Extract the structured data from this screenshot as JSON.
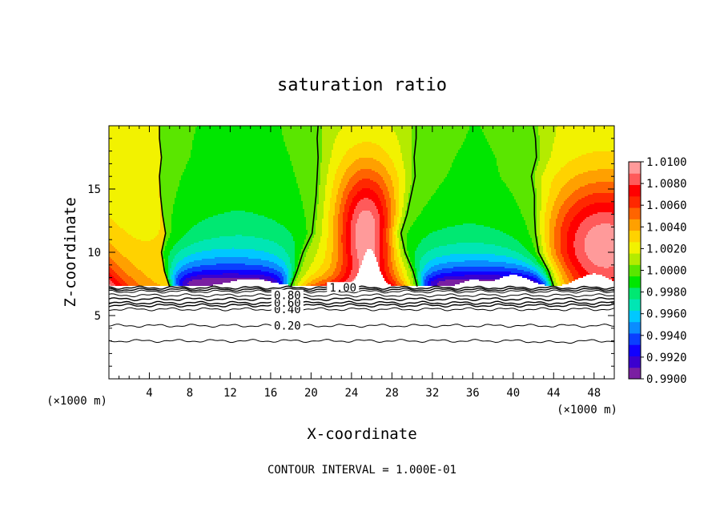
{
  "chart_data": {
    "type": "heatmap",
    "title": "saturation ratio",
    "xlabel": "X-coordinate",
    "ylabel": "Z-coordinate",
    "x_unit_left": "(×1000 m)",
    "x_unit_right": "(×1000 m)",
    "footer": "CONTOUR INTERVAL = 1.000E-01",
    "xlim": [
      0,
      50
    ],
    "ylim": [
      0,
      20
    ],
    "x_ticks": [
      4,
      8,
      12,
      16,
      20,
      24,
      28,
      32,
      36,
      40,
      44,
      48
    ],
    "y_ticks": [
      5,
      10,
      15
    ],
    "colorbar": {
      "min": 0.99,
      "max": 1.01,
      "labels": [
        "1.0100",
        "1.0080",
        "1.0060",
        "1.0040",
        "1.0020",
        "1.0000",
        "0.9980",
        "0.9960",
        "0.9940",
        "0.9920",
        "0.9900"
      ],
      "colors": [
        "#7a1fa2",
        "#3b00cf",
        "#1100ff",
        "#0a3fff",
        "#0a8cff",
        "#00c8ff",
        "#00e6b4",
        "#00e872",
        "#00e600",
        "#5ae600",
        "#b4eb00",
        "#f2f200",
        "#ffd200",
        "#ffa000",
        "#ff6400",
        "#ff2800",
        "#ff0000",
        "#ff5a5a",
        "#ff9a9a"
      ]
    },
    "saturation_contour_level": 1.0,
    "saturation_contour_x": [
      [
        6.0,
        5.5,
        5.2,
        5.6,
        5.3,
        5.1,
        5.0,
        5.2,
        5.0,
        5.0
      ],
      [
        18.0,
        18.6,
        19.2,
        20.1,
        20.3,
        20.5,
        20.6,
        20.7,
        20.6,
        20.7
      ],
      [
        30.5,
        30.1,
        29.3,
        28.9,
        29.5,
        29.9,
        30.3,
        30.2,
        30.4,
        30.4
      ],
      [
        44.0,
        43.5,
        42.5,
        42.2,
        42.1,
        42.1,
        41.8,
        42.3,
        42.2,
        42.0
      ]
    ],
    "saturation_contour_z": [
      7.3,
      8.5,
      10,
      11.5,
      13,
      14.5,
      16,
      17.5,
      19,
      20
    ],
    "lower_contours": [
      {
        "level": 0.2,
        "label": "0.20",
        "z": 4.2
      },
      {
        "level": 0.4,
        "label": "0.40",
        "z": 5.5
      },
      {
        "level": 0.6,
        "label": "0.60",
        "z": 6.0
      },
      {
        "level": 0.8,
        "label": "0.80",
        "z": 6.6
      },
      {
        "level": 1.0,
        "label": "1.00",
        "z": 7.2
      }
    ],
    "lower_unlabeled_contours_z": [
      3.0,
      5.8,
      6.3,
      6.9,
      7.05
    ],
    "cloud_top_z": 7.3,
    "cloud_base_z": 3.0
  }
}
